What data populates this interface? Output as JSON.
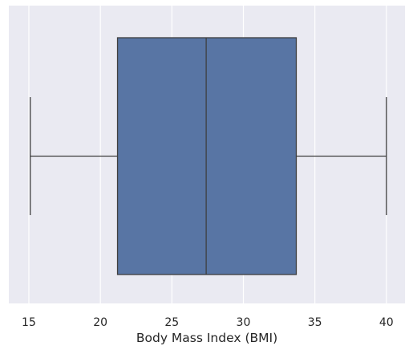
{
  "chart_data": {
    "type": "box",
    "xlabel": "Body Mass Index (BMI)",
    "orientation": "horizontal",
    "xlim": [
      13.6,
      41.3
    ],
    "x_ticks": [
      15,
      20,
      25,
      30,
      35,
      40
    ],
    "x_tick_labels": [
      "15",
      "20",
      "25",
      "30",
      "35",
      "40"
    ],
    "grid": true,
    "boxes": [
      {
        "whisker_low": 15.1,
        "q1": 21.2,
        "median": 27.4,
        "q3": 33.7,
        "whisker_high": 40.0
      }
    ]
  },
  "colors": {
    "plot_background": "#EAEAF2",
    "grid": "#FFFFFF",
    "box_fill": "#5875A4",
    "line": "#3F3F3F",
    "text": "#262626"
  }
}
